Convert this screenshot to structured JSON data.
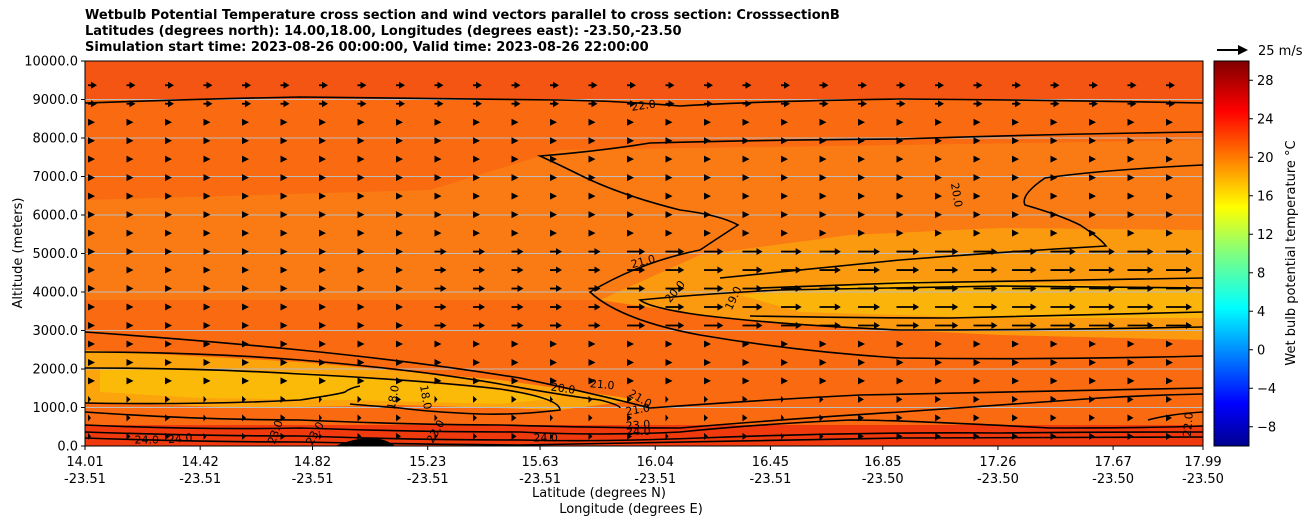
{
  "chart_data": {
    "type": "contour-cross-section",
    "title_lines": [
      "Wetbulb Potential Temperature cross section and wind vectors parallel to cross section: CrosssectionB",
      "Latitudes (degrees north): 14.00,18.00, Longitudes (degrees east): -23.50,-23.50",
      "Simulation start time: 2023-08-26 00:00:00, Valid time: 2023-08-26 22:00:00"
    ],
    "ylabel": "Altitude (meters)",
    "xlabel_lat": "Latitude (degrees N)",
    "xlabel_lon": "Longitude (degrees E)",
    "ylim": [
      0,
      10000
    ],
    "y_ticks": [
      "0.0",
      "1000.0",
      "2000.0",
      "3000.0",
      "4000.0",
      "5000.0",
      "6000.0",
      "7000.0",
      "8000.0",
      "9000.0",
      "10000.0"
    ],
    "x_ticks": [
      {
        "lat": "14.01",
        "lon": "-23.51"
      },
      {
        "lat": "14.42",
        "lon": "-23.51"
      },
      {
        "lat": "14.82",
        "lon": "-23.51"
      },
      {
        "lat": "15.23",
        "lon": "-23.51"
      },
      {
        "lat": "15.63",
        "lon": "-23.51"
      },
      {
        "lat": "16.04",
        "lon": "-23.51"
      },
      {
        "lat": "16.45",
        "lon": "-23.51"
      },
      {
        "lat": "16.85",
        "lon": "-23.50"
      },
      {
        "lat": "17.26",
        "lon": "-23.50"
      },
      {
        "lat": "17.67",
        "lon": "-23.50"
      },
      {
        "lat": "17.99",
        "lon": "-23.50"
      }
    ],
    "contour_labels": [
      {
        "text": "22.0",
        "lat": 16.0,
        "alt": 8750,
        "angle": -8
      },
      {
        "text": "20.0",
        "lat": 17.1,
        "alt": 6500,
        "angle": 80
      },
      {
        "text": "21.0",
        "lat": 16.0,
        "alt": 4700,
        "angle": -15
      },
      {
        "text": "20.0",
        "lat": 16.12,
        "alt": 3950,
        "angle": -50
      },
      {
        "text": "19.0",
        "lat": 16.33,
        "alt": 3800,
        "angle": -65
      },
      {
        "text": "20.0",
        "lat": 15.71,
        "alt": 1400,
        "angle": 8
      },
      {
        "text": "21.0",
        "lat": 15.85,
        "alt": 1500,
        "angle": 5
      },
      {
        "text": "21.0",
        "lat": 15.98,
        "alt": 1150,
        "angle": 30
      },
      {
        "text": "21.0",
        "lat": 15.98,
        "alt": 850,
        "angle": -10
      },
      {
        "text": "23.0",
        "lat": 15.98,
        "alt": 450,
        "angle": -5
      },
      {
        "text": "24.0",
        "lat": 15.98,
        "alt": 280,
        "angle": 0
      },
      {
        "text": "18.0",
        "lat": 15.12,
        "alt": 1250,
        "angle": -80
      },
      {
        "text": "18.0",
        "lat": 15.21,
        "alt": 1250,
        "angle": 80
      },
      {
        "text": "24.0",
        "lat": 14.23,
        "alt": 60,
        "angle": 0
      },
      {
        "text": "24.0",
        "lat": 14.35,
        "alt": 100,
        "angle": -5
      },
      {
        "text": "23.0",
        "lat": 14.7,
        "alt": 330,
        "angle": -70
      },
      {
        "text": "23.0",
        "lat": 14.84,
        "alt": 280,
        "angle": -60
      },
      {
        "text": "23.0",
        "lat": 15.27,
        "alt": 330,
        "angle": -60
      },
      {
        "text": "24.0",
        "lat": 15.65,
        "alt": 120,
        "angle": 0
      },
      {
        "text": "22.0",
        "lat": 17.95,
        "alt": 550,
        "angle": -85
      }
    ],
    "colorbar": {
      "label": "Wet bulb potential temperature °C",
      "ticks": [
        "28",
        "24",
        "20",
        "16",
        "12",
        "8",
        "4",
        "0",
        "−4",
        "−8"
      ],
      "range": [
        -10,
        30
      ],
      "colormap": "jet"
    },
    "wind_key": "25 m/s"
  }
}
